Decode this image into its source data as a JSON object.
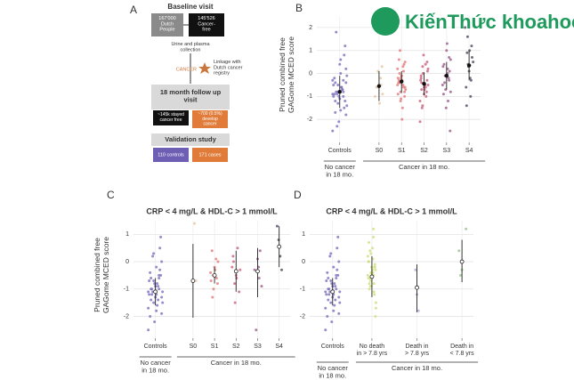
{
  "watermark": "KiếnThức khoahoc.org",
  "diagram": {
    "label": "A",
    "baseline": "Baseline visit",
    "people": "167'000\nDutch\nPeople",
    "cancer_free": "145'526\nCancer-\nfree",
    "collection": "Urine and plasma\ncollection",
    "cancer": "CANCER",
    "linkage": "Linkage with\nDutch cancer\nregistry",
    "followup": "18 month follow up\nvisit",
    "stayed": "~145k stayed\ncancer free",
    "develop": "~700 (0.5%)\ndevelop\ncancer",
    "validation": "Validation study",
    "controls": "110 controls",
    "cases": "171 cases"
  },
  "chart_data": [
    {
      "type": "strip",
      "panel": "B",
      "y_label": "Pruned combined free\nGAGome MCED score",
      "mean_marker": "filled",
      "grid": true,
      "categories": [
        "Controls",
        "S0",
        "S1",
        "S2",
        "S3",
        "S4"
      ],
      "colors": [
        "#7b70bd",
        "#e3c6a4",
        "#e27a78",
        "#c9607c",
        "#9b5b8a",
        "#4d4b5c"
      ],
      "groups": [
        {
          "label": "No cancer\nin 18 mo.",
          "categories": [
            "Controls"
          ]
        },
        {
          "label": "Cancer in 18 mo.",
          "categories": [
            "S0",
            "S1",
            "S2",
            "S3",
            "S4"
          ]
        }
      ],
      "points": [
        [
          -0.9,
          -1.2,
          -0.5,
          -1.6,
          -0.3,
          0.2,
          -1.0,
          -0.8,
          -2.1,
          -0.6,
          0.8,
          -1.4,
          -0.2,
          -0.9,
          -1.1,
          -0.7,
          1.2,
          -2.5,
          -0.4,
          -1.3,
          0.0,
          -0.8,
          -1.8,
          -0.5,
          1.8,
          -1.0,
          -0.6,
          -1.5,
          -0.1,
          -0.9,
          -2.3,
          0.4,
          -0.7,
          -1.2,
          -0.3,
          -1.7,
          -0.8,
          0.6,
          -1.0,
          -0.4
        ],
        [
          -0.2,
          0.3,
          -1.0,
          -0.6,
          0.1,
          -1.3,
          -0.5,
          -0.9
        ],
        [
          -0.4,
          -0.1,
          0.3,
          -0.8,
          -0.5,
          0.6,
          -1.2,
          -0.3,
          0.1,
          -0.6,
          -0.9,
          0.0,
          -0.2,
          -1.5,
          0.4,
          -0.7,
          -0.4,
          1.0,
          -0.1,
          -0.5,
          -1.0,
          0.2,
          -0.3,
          -0.8,
          -2.0,
          -0.6,
          0.5,
          -0.2,
          -0.4,
          -1.1
        ],
        [
          -0.5,
          -0.2,
          0.3,
          -0.9,
          -0.6,
          0.5,
          -1.2,
          -0.4,
          0.0,
          -0.7,
          -1.0,
          0.1,
          -0.3,
          -1.5,
          0.8,
          -0.5,
          -0.8,
          0.2,
          -0.1,
          -1.4,
          -0.6,
          0.4,
          -0.3,
          -2.1,
          -0.7
        ],
        [
          0.2,
          -0.3,
          0.6,
          -0.9,
          -0.1,
          1.0,
          -1.2,
          0.1,
          -0.5,
          0.4,
          -0.7,
          1.3,
          -0.2,
          -2.5,
          0.3,
          -0.4,
          -1.5,
          0.0,
          0.7,
          -0.8
        ],
        [
          0.9,
          0.3,
          -0.2,
          1.2,
          0.5,
          -0.6,
          1.6,
          0.1,
          -1.0,
          0.7,
          2.0,
          -1.4,
          0.4,
          1.0,
          -0.3
        ]
      ],
      "means": [
        -0.8,
        -0.55,
        -0.35,
        -0.45,
        -0.1,
        0.35
      ],
      "error_low": [
        -1.5,
        -1.2,
        -0.85,
        -0.95,
        -0.7,
        -0.3
      ],
      "error_high": [
        -0.1,
        0.1,
        0.1,
        0.05,
        0.5,
        1.0
      ],
      "ylim": [
        -3,
        2.5
      ],
      "yticks": [
        -2,
        -1,
        0,
        1,
        2
      ]
    },
    {
      "type": "strip",
      "panel": "C",
      "title": "CRP < 4 mg/L & HDL-C > 1 mmol/L",
      "y_label": "Pruned combined free\nGAGome MCED score",
      "mean_marker": "open",
      "grid": true,
      "categories": [
        "Controls",
        "S0",
        "S1",
        "S2",
        "S3",
        "S4"
      ],
      "colors": [
        "#7b70bd",
        "#e3c6a4",
        "#e27a78",
        "#c9607c",
        "#9b5b8a",
        "#4d4b5c"
      ],
      "groups": [
        {
          "label": "No cancer\nin 18 mo.",
          "categories": [
            "Controls"
          ]
        },
        {
          "label": "Cancer in 18 mo.",
          "categories": [
            "S0",
            "S1",
            "S2",
            "S3",
            "S4"
          ]
        }
      ],
      "points": [
        [
          -1.1,
          -1.4,
          -0.7,
          -1.8,
          -0.5,
          0.0,
          -1.2,
          -1.0,
          -2.2,
          -0.8,
          0.5,
          -1.5,
          -0.4,
          -1.1,
          -1.3,
          -0.9,
          0.9,
          -2.5,
          -0.6,
          -1.5,
          -0.2,
          -1.0,
          -1.9,
          -0.7,
          -1.2,
          -0.8,
          -1.6,
          -0.3,
          -1.1,
          -2.0,
          0.2,
          -0.9,
          -1.4,
          -0.5,
          -1.7,
          -1.0,
          0.3,
          -1.2,
          -0.6,
          -1.3
        ],
        [
          1.4,
          -0.7
        ],
        [
          -0.5,
          -0.2,
          0.1,
          -0.8,
          -0.4,
          0.4,
          -1.0,
          -0.3,
          -0.6,
          0.0,
          -0.7,
          -1.3
        ],
        [
          -0.3,
          0.2,
          -0.8,
          -0.5,
          0.5,
          -1.1,
          -0.2,
          0.0,
          -1.5,
          -0.6
        ],
        [
          -0.2,
          0.4,
          -0.9,
          -0.3,
          -2.5,
          0.1,
          -0.6
        ],
        [
          1.3,
          0.8,
          0.2,
          -0.3
        ]
      ],
      "means": [
        -1.1,
        -0.7,
        -0.5,
        -0.35,
        -0.35,
        0.55
      ],
      "error_low": [
        -1.6,
        -2.05,
        -0.8,
        -1.1,
        -1.3,
        -0.2
      ],
      "error_high": [
        -0.6,
        0.65,
        -0.2,
        0.4,
        0.5,
        1.3
      ],
      "ylim": [
        -2.8,
        1.5
      ],
      "yticks": [
        -2,
        -1,
        0,
        1
      ]
    },
    {
      "type": "strip",
      "panel": "D",
      "title": "CRP < 4 mg/L & HDL-C > 1 mmol/L",
      "mean_marker": "open",
      "grid": true,
      "categories": [
        "Controls",
        "No death\nin > 7.8 yrs",
        "Death in\n> 7.8 yrs",
        "Death in\n< 7.8 yrs"
      ],
      "colors": [
        "#7b70bd",
        "#cde07c",
        "#b9a6d9",
        "#98c48c"
      ],
      "groups": [
        {
          "label": "No cancer\nin 18 mo.",
          "categories": [
            "Controls"
          ]
        },
        {
          "label": "Cancer in 18 mo.",
          "categories": [
            "No death\nin > 7.8 yrs",
            "Death in\n> 7.8 yrs",
            "Death in\n< 7.8 yrs"
          ]
        }
      ],
      "points": [
        [
          -1.1,
          -1.4,
          -0.7,
          -1.8,
          -0.5,
          0.0,
          -1.2,
          -1.0,
          -2.2,
          -0.8,
          0.5,
          -1.5,
          -0.4,
          -1.1,
          -1.3,
          -0.9,
          0.9,
          -2.5,
          -0.6,
          -1.5,
          -0.2,
          -1.0,
          -1.9,
          -0.7,
          -1.2,
          -0.8,
          -1.6,
          -0.3,
          -1.1,
          -2.0,
          0.2,
          -0.9,
          -1.4,
          -0.5,
          -1.7,
          -1.0,
          0.3,
          -1.2,
          -0.6,
          -1.3
        ],
        [
          -0.5,
          -0.2,
          0.2,
          -0.8,
          -0.4,
          0.5,
          -1.1,
          -0.3,
          0.0,
          -0.6,
          -0.9,
          0.1,
          -0.2,
          -1.5,
          0.7,
          -0.7,
          -0.4,
          1.2,
          -0.1,
          -0.5,
          -1.0,
          0.3,
          -0.3,
          -0.8,
          -2.0,
          -0.6,
          0.4,
          -0.2,
          -0.4,
          -1.2,
          -1.7,
          0.0,
          -0.9,
          -0.5,
          0.9
        ],
        [
          -0.3,
          -1.2,
          -1.8
        ],
        [
          1.2,
          0.4,
          -0.5,
          -0.3
        ]
      ],
      "means": [
        -1.1,
        -0.55,
        -0.95,
        0.0
      ],
      "error_low": [
        -1.6,
        -1.3,
        -1.85,
        -0.75
      ],
      "error_high": [
        -0.6,
        0.2,
        -0.1,
        0.8
      ],
      "ylim": [
        -2.8,
        1.5
      ],
      "yticks": [
        -2,
        -1,
        0,
        1
      ]
    }
  ]
}
